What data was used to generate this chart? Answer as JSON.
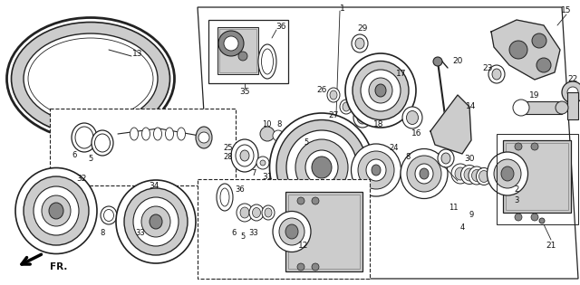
{
  "bg_color": "#f0f0f0",
  "fig_width": 6.4,
  "fig_height": 3.15,
  "dpi": 100,
  "line_color": "#222222",
  "text_color": "#111111",
  "label_fontsize": 6.5,
  "arrow_color": "#111111",
  "gray_fill": "#aaaaaa",
  "light_gray": "#cccccc",
  "dark_gray": "#888888"
}
